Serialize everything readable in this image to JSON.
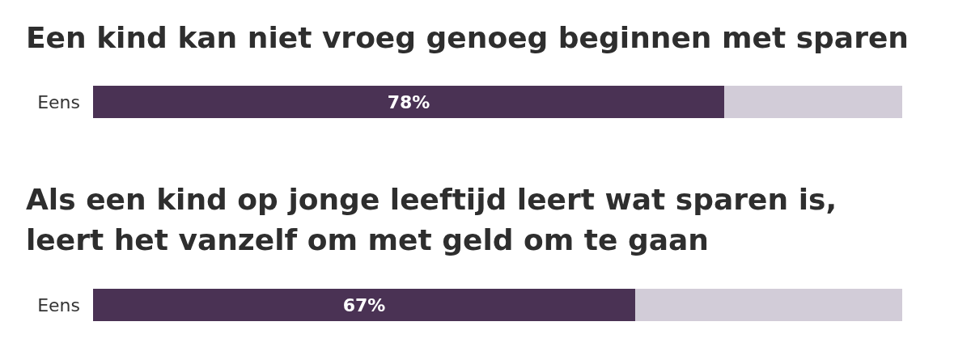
{
  "chart_data": [
    {
      "type": "bar",
      "title": "Een kind kan niet vroeg genoeg beginnen met sparen",
      "categories": [
        "Eens"
      ],
      "orientation": "horizontal",
      "stacked": true,
      "xlim": [
        0,
        100
      ],
      "tick_labels": "y",
      "grid": false,
      "series": [
        {
          "color": "#4a3254",
          "values": [
            78
          ],
          "value_labels": [
            "78%"
          ]
        },
        {
          "color": "#d2ccd8",
          "values": [
            22
          ]
        }
      ]
    },
    {
      "type": "bar",
      "title": "Als een kind op jonge leeftijd leert wat sparen is, leert het vanzelf om met geld om te gaan",
      "categories": [
        "Eens"
      ],
      "orientation": "horizontal",
      "stacked": true,
      "xlim": [
        0,
        100
      ],
      "tick_labels": "y",
      "grid": false,
      "series": [
        {
          "color": "#4a3254",
          "values": [
            67
          ],
          "value_labels": [
            "67%"
          ]
        },
        {
          "color": "#d2ccd8",
          "values": [
            33
          ]
        }
      ]
    }
  ]
}
